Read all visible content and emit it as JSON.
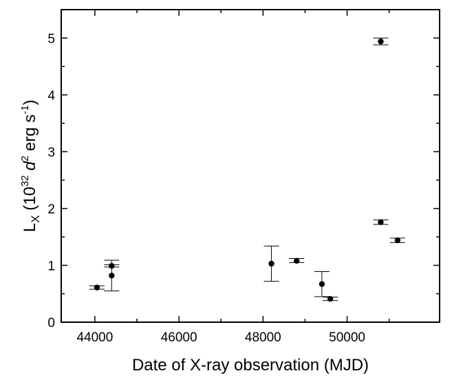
{
  "chart_data": {
    "type": "scatter",
    "xlabel": "Date of X-ray observation (MJD)",
    "ylabel": {
      "main": "L",
      "sub": "X",
      "open": " (10",
      "exp": "32",
      "d": " d",
      "d_exp": "2",
      "unit": " erg s",
      "unit_exp": "-1",
      "close": ")"
    },
    "xlim": [
      43200,
      52200
    ],
    "ylim": [
      0,
      5.5
    ],
    "x_ticks": [
      44000,
      46000,
      48000,
      50000
    ],
    "x_tick_labels": [
      "44000",
      "46000",
      "48000",
      "50000"
    ],
    "y_ticks": [
      0,
      1,
      2,
      3,
      4,
      5
    ],
    "y_tick_labels": [
      "0",
      "1",
      "2",
      "3",
      "4",
      "5"
    ],
    "grid": false,
    "legend": "none",
    "points": [
      {
        "x": 44050,
        "y": 0.61,
        "ylo": 0.58,
        "yhi": 0.64
      },
      {
        "x": 44400,
        "y": 0.99,
        "ylo": 0.97,
        "yhi": 1.01
      },
      {
        "x": 44400,
        "y": 0.82,
        "ylo": 0.55,
        "yhi": 1.09
      },
      {
        "x": 48200,
        "y": 1.03,
        "ylo": 0.72,
        "yhi": 1.34
      },
      {
        "x": 48800,
        "y": 1.08,
        "ylo": 1.05,
        "yhi": 1.12
      },
      {
        "x": 49400,
        "y": 0.67,
        "ylo": 0.45,
        "yhi": 0.89
      },
      {
        "x": 49600,
        "y": 0.41,
        "ylo": 0.38,
        "yhi": 0.44
      },
      {
        "x": 50800,
        "y": 4.94,
        "ylo": 4.88,
        "yhi": 5.0
      },
      {
        "x": 50800,
        "y": 1.76,
        "ylo": 1.72,
        "yhi": 1.8
      },
      {
        "x": 51200,
        "y": 1.44,
        "ylo": 1.4,
        "yhi": 1.48
      }
    ]
  }
}
